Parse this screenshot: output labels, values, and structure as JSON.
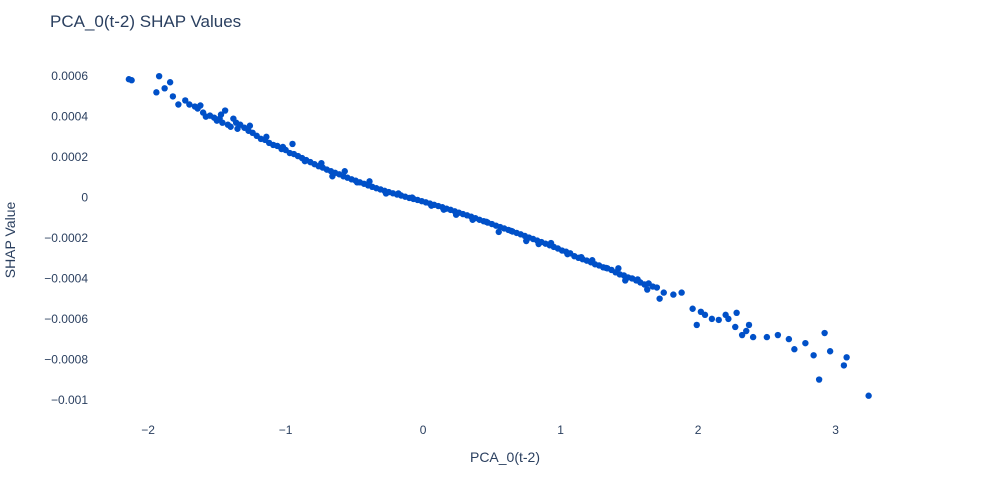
{
  "chart_data": {
    "type": "scatter",
    "title": "PCA_0(t-2) SHAP Values",
    "xlabel": "PCA_0(t-2)",
    "ylabel": "SHAP Value",
    "xlim": [
      -2.35,
      4.05
    ],
    "ylim": [
      -0.0011,
      0.00068
    ],
    "grid": false,
    "legend": "none",
    "marker_color": "#0050c8",
    "xticks": [
      {
        "value": -2,
        "label": "−2"
      },
      {
        "value": -1,
        "label": "−1"
      },
      {
        "value": 0,
        "label": "0"
      },
      {
        "value": 1,
        "label": "1"
      },
      {
        "value": 2,
        "label": "2"
      },
      {
        "value": 3,
        "label": "3"
      }
    ],
    "yticks": [
      {
        "value": 0.0006,
        "label": "0.0006"
      },
      {
        "value": 0.0004,
        "label": "0.0004"
      },
      {
        "value": 0.0002,
        "label": "0.0002"
      },
      {
        "value": 0,
        "label": "0"
      },
      {
        "value": -0.0002,
        "label": "−0.0002"
      },
      {
        "value": -0.0004,
        "label": "−0.0004"
      },
      {
        "value": -0.0006,
        "label": "−0.0006"
      },
      {
        "value": -0.0008,
        "label": "−0.0008"
      },
      {
        "value": -0.001,
        "label": "−0.001"
      }
    ],
    "x": [
      -2.14,
      -2.12,
      -1.94,
      -1.92,
      -1.88,
      -1.84,
      -1.82,
      -1.73,
      -1.7,
      -1.66,
      -1.64,
      -1.6,
      -1.58,
      -1.55,
      -1.52,
      -1.5,
      -1.48,
      -1.46,
      -1.44,
      -1.42,
      -1.4,
      -1.38,
      -1.36,
      -1.33,
      -1.3,
      -1.27,
      -1.24,
      -1.21,
      -1.18,
      -1.15,
      -1.12,
      -1.09,
      -1.06,
      -1.03,
      -1.0,
      -0.97,
      -0.94,
      -0.91,
      -0.88,
      -0.85,
      -0.82,
      -0.79,
      -0.76,
      -0.73,
      -0.7,
      -0.67,
      -0.64,
      -0.61,
      -0.58,
      -0.55,
      -0.52,
      -0.49,
      -0.46,
      -0.43,
      -0.4,
      -0.37,
      -0.34,
      -0.31,
      -0.28,
      -0.25,
      -0.22,
      -0.19,
      -0.16,
      -0.13,
      -0.1,
      -0.07,
      -0.04,
      -0.01,
      0.02,
      0.05,
      0.08,
      0.11,
      0.14,
      0.17,
      0.2,
      0.23,
      0.26,
      0.29,
      0.32,
      0.35,
      0.38,
      0.41,
      0.44,
      0.47,
      0.5,
      0.53,
      0.56,
      0.59,
      0.62,
      0.65,
      0.68,
      0.71,
      0.74,
      0.77,
      0.8,
      0.83,
      0.86,
      0.89,
      0.92,
      0.95,
      0.98,
      1.01,
      1.04,
      1.07,
      1.1,
      1.13,
      1.16,
      1.19,
      1.22,
      1.25,
      1.28,
      1.31,
      1.34,
      1.37,
      1.4,
      1.43,
      1.46,
      1.49,
      1.52,
      1.55,
      1.58,
      1.61,
      1.64,
      1.67,
      1.7,
      1.75,
      1.82,
      1.88,
      1.96,
      2.02,
      2.05,
      2.1,
      2.15,
      2.2,
      2.22,
      2.28,
      2.32,
      2.35,
      2.37,
      2.4,
      2.5,
      2.58,
      2.66,
      2.7,
      2.78,
      2.84,
      2.88,
      2.92,
      2.96,
      3.06,
      3.08,
      3.24,
      -1.78,
      -1.62,
      -1.47,
      -1.35,
      -1.26,
      -1.14,
      -1.02,
      -0.95,
      -0.86,
      -0.74,
      -0.66,
      -0.57,
      -0.48,
      -0.39,
      -0.27,
      -0.18,
      -0.08,
      0.06,
      0.15,
      0.24,
      0.36,
      0.46,
      0.55,
      0.64,
      0.75,
      0.84,
      0.93,
      1.05,
      1.15,
      1.23,
      1.33,
      1.42,
      1.47,
      1.56,
      1.63,
      1.72,
      1.99,
      2.27
    ],
    "y": [
      0.000585,
      0.00058,
      0.00052,
      0.0006,
      0.00054,
      0.00057,
      0.0005,
      0.00048,
      0.00046,
      0.00045,
      0.00044,
      0.00042,
      0.0004,
      0.000405,
      0.000395,
      0.00038,
      0.00039,
      0.00037,
      0.00043,
      0.00036,
      0.00035,
      0.00039,
      0.00037,
      0.00036,
      0.000345,
      0.00033,
      0.00032,
      0.000305,
      0.00029,
      0.000285,
      0.00027,
      0.00026,
      0.000255,
      0.00024,
      0.000235,
      0.00022,
      0.000215,
      0.000205,
      0.000195,
      0.000185,
      0.000175,
      0.000165,
      0.000155,
      0.000148,
      0.000138,
      0.00013,
      0.000122,
      0.000115,
      0.000105,
      9.8e-05,
      9e-05,
      8.3e-05,
      7.5e-05,
      6.8e-05,
      6e-05,
      5.3e-05,
      4.6e-05,
      4e-05,
      3.3e-05,
      2.7e-05,
      2.1e-05,
      1.5e-05,
      1e-05,
      4e-06,
      -2e-06,
      -7e-06,
      -1.2e-05,
      -1.8e-05,
      -2.4e-05,
      -3e-05,
      -3.6e-05,
      -4.2e-05,
      -4.8e-05,
      -5.5e-05,
      -6.1e-05,
      -6.8e-05,
      -7.5e-05,
      -8.2e-05,
      -8.8e-05,
      -9.5e-05,
      -0.000102,
      -0.00011,
      -0.000117,
      -0.000124,
      -0.000131,
      -0.000139,
      -0.000146,
      -0.000153,
      -0.00016,
      -0.000168,
      -0.000175,
      -0.000182,
      -0.00019,
      -0.000198,
      -0.000205,
      -0.000213,
      -0.00022,
      -0.000228,
      -0.000236,
      -0.000244,
      -0.000252,
      -0.000262,
      -0.000268,
      -0.000276,
      -0.00029,
      -0.000298,
      -0.000305,
      -0.000312,
      -0.00032,
      -0.00033,
      -0.000336,
      -0.000345,
      -0.00035,
      -0.000358,
      -0.00037,
      -0.00038,
      -0.000385,
      -0.000395,
      -0.0004,
      -0.00041,
      -0.00042,
      -0.00043,
      -0.000425,
      -0.00044,
      -0.000445,
      -0.00047,
      -0.00048,
      -0.00047,
      -0.00055,
      -0.000565,
      -0.00058,
      -0.0006,
      -0.000605,
      -0.00058,
      -0.0006,
      -0.00057,
      -0.00068,
      -0.00066,
      -0.00063,
      -0.00069,
      -0.00069,
      -0.00068,
      -0.0007,
      -0.00075,
      -0.00072,
      -0.00078,
      -0.0009,
      -0.00067,
      -0.00076,
      -0.00083,
      -0.00079,
      -0.00098,
      0.00046,
      0.000455,
      0.00041,
      0.00034,
      0.000355,
      0.0003,
      0.00025,
      0.000265,
      0.00018,
      0.00017,
      0.000105,
      0.00013,
      7.5e-05,
      8e-05,
      2e-05,
      2e-05,
      0.0,
      -4e-05,
      -6e-05,
      -8.5e-05,
      -0.00011,
      -0.00012,
      -0.00017,
      -0.000165,
      -0.000215,
      -0.00023,
      -0.000225,
      -0.00028,
      -0.000295,
      -0.00031,
      -0.000348,
      -0.00035,
      -0.00041,
      -0.000405,
      -0.000455,
      -0.0005,
      -0.00063,
      -0.00064
    ]
  }
}
